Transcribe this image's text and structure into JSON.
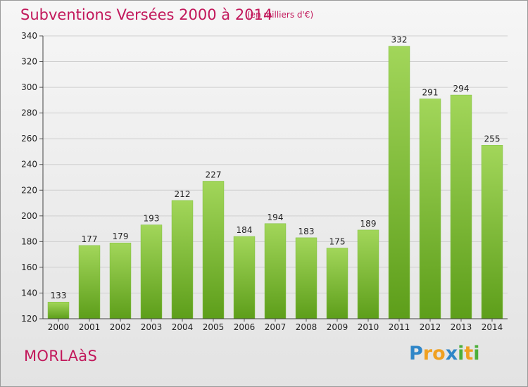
{
  "title": "Subventions Versées 2000 à 2014",
  "subtitle": "(en milliers d'€)",
  "city": "MORLAàS",
  "logo": {
    "letters": [
      {
        "ch": "P",
        "color": "#2f86c8"
      },
      {
        "ch": "r",
        "color": "#f0a020"
      },
      {
        "ch": "o",
        "color": "#f0a020"
      },
      {
        "ch": "x",
        "color": "#2f86c8"
      },
      {
        "ch": "i",
        "color": "#4caf3a"
      },
      {
        "ch": "t",
        "color": "#f0a020"
      },
      {
        "ch": "i",
        "color": "#4caf3a"
      }
    ]
  },
  "chart_data": {
    "type": "bar",
    "categories": [
      "2000",
      "2001",
      "2002",
      "2003",
      "2004",
      "2005",
      "2006",
      "2007",
      "2008",
      "2009",
      "2010",
      "2011",
      "2012",
      "2013",
      "2014"
    ],
    "values": [
      133,
      177,
      179,
      193,
      212,
      227,
      184,
      194,
      183,
      175,
      189,
      332,
      291,
      294,
      255
    ],
    "ylim": [
      120,
      340
    ],
    "yticks": [
      120,
      140,
      160,
      180,
      200,
      220,
      240,
      260,
      280,
      300,
      320,
      340
    ],
    "grid": true,
    "bar_color": "#7fc13a"
  }
}
